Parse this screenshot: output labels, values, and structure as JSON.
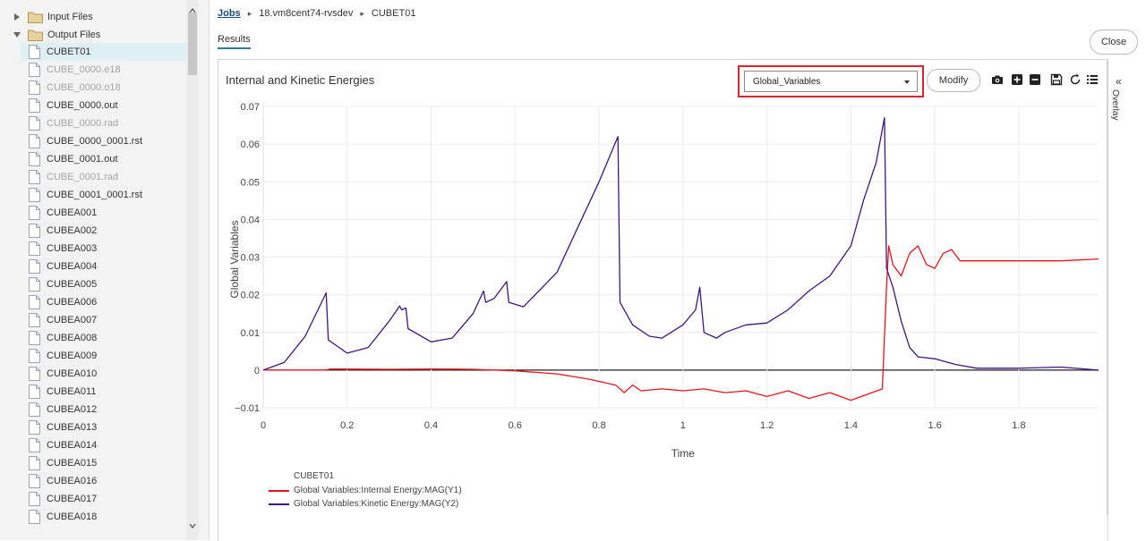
{
  "sidebar": {
    "folders": [
      {
        "label": "Input Files",
        "expanded": false
      },
      {
        "label": "Output Files",
        "expanded": true
      }
    ],
    "files": [
      {
        "label": "CUBET01",
        "dim": false,
        "selected": true
      },
      {
        "label": "CUBE_0000.e18",
        "dim": true
      },
      {
        "label": "CUBE_0000.o18",
        "dim": true
      },
      {
        "label": "CUBE_0000.out",
        "dim": false
      },
      {
        "label": "CUBE_0000.rad",
        "dim": true
      },
      {
        "label": "CUBE_0000_0001.rst",
        "dim": false
      },
      {
        "label": "CUBE_0001.out",
        "dim": false
      },
      {
        "label": "CUBE_0001.rad",
        "dim": true
      },
      {
        "label": "CUBE_0001_0001.rst",
        "dim": false
      },
      {
        "label": "CUBEA001",
        "dim": false
      },
      {
        "label": "CUBEA002",
        "dim": false
      },
      {
        "label": "CUBEA003",
        "dim": false
      },
      {
        "label": "CUBEA004",
        "dim": false
      },
      {
        "label": "CUBEA005",
        "dim": false
      },
      {
        "label": "CUBEA006",
        "dim": false
      },
      {
        "label": "CUBEA007",
        "dim": false
      },
      {
        "label": "CUBEA008",
        "dim": false
      },
      {
        "label": "CUBEA009",
        "dim": false
      },
      {
        "label": "CUBEA010",
        "dim": false
      },
      {
        "label": "CUBEA011",
        "dim": false
      },
      {
        "label": "CUBEA012",
        "dim": false
      },
      {
        "label": "CUBEA013",
        "dim": false
      },
      {
        "label": "CUBEA014",
        "dim": false
      },
      {
        "label": "CUBEA015",
        "dim": false
      },
      {
        "label": "CUBEA016",
        "dim": false
      },
      {
        "label": "CUBEA017",
        "dim": false
      },
      {
        "label": "CUBEA018",
        "dim": false
      }
    ]
  },
  "breadcrumb": {
    "root": "Jobs",
    "job": "18.vm8cent74-rvsdev",
    "file": "CUBET01"
  },
  "tabs": {
    "results": "Results"
  },
  "close_label": "Close",
  "chart_header": {
    "title": "Internal and Kinetic Energies",
    "variable_select": "Global_Variables",
    "modify_label": "Modify"
  },
  "toolbar_icons": [
    "camera-icon",
    "zoom-in-icon",
    "zoom-out-icon",
    "save-icon",
    "reset-icon",
    "list-icon"
  ],
  "overlay": {
    "label": "Overlay",
    "chevron": "«"
  },
  "colors": {
    "internal": "#e8141c",
    "kinetic": "#3d1680",
    "accent": "#2d7f8f",
    "highlight": "#d9262b"
  },
  "chart_data": {
    "type": "line",
    "xlabel": "Time",
    "ylabel": "Global Variables",
    "xlim": [
      0,
      1.99
    ],
    "ylim": [
      -0.012,
      0.072
    ],
    "xticks": [
      0,
      0.2,
      0.4,
      0.6,
      0.8,
      1,
      1.2,
      1.4,
      1.6,
      1.8
    ],
    "xtick_labels": [
      "0",
      "0.2",
      "0.4",
      "0.6",
      "0.8",
      "1",
      "1.2",
      "1.4",
      "1.6",
      "1.8"
    ],
    "yticks": [
      -0.01,
      0,
      0.01,
      0.02,
      0.03,
      0.04,
      0.05,
      0.06,
      0.07
    ],
    "ytick_labels": [
      "−0.01",
      "0",
      "0.01",
      "0.02",
      "0.03",
      "0.04",
      "0.05",
      "0.06",
      "0.07"
    ],
    "legend_title": "CUBET01",
    "series": [
      {
        "name": "Global Variables:Internal Energy:MAG(Y1)",
        "points": [
          [
            0,
            0
          ],
          [
            0.15,
            0
          ],
          [
            0.16,
            0.0003
          ],
          [
            0.3,
            0.0002
          ],
          [
            0.4,
            0.0003
          ],
          [
            0.5,
            0.0002
          ],
          [
            0.6,
            -0.0002
          ],
          [
            0.7,
            -0.001
          ],
          [
            0.78,
            -0.0025
          ],
          [
            0.84,
            -0.004
          ],
          [
            0.86,
            -0.006
          ],
          [
            0.88,
            -0.004
          ],
          [
            0.9,
            -0.0055
          ],
          [
            0.95,
            -0.005
          ],
          [
            1.0,
            -0.0055
          ],
          [
            1.05,
            -0.005
          ],
          [
            1.1,
            -0.006
          ],
          [
            1.15,
            -0.0055
          ],
          [
            1.2,
            -0.007
          ],
          [
            1.25,
            -0.0055
          ],
          [
            1.3,
            -0.0075
          ],
          [
            1.35,
            -0.006
          ],
          [
            1.4,
            -0.008
          ],
          [
            1.45,
            -0.006
          ],
          [
            1.475,
            -0.005
          ],
          [
            1.485,
            0.022
          ],
          [
            1.49,
            0.033
          ],
          [
            1.5,
            0.028
          ],
          [
            1.52,
            0.025
          ],
          [
            1.54,
            0.031
          ],
          [
            1.56,
            0.033
          ],
          [
            1.58,
            0.028
          ],
          [
            1.6,
            0.027
          ],
          [
            1.62,
            0.031
          ],
          [
            1.64,
            0.032
          ],
          [
            1.66,
            0.029
          ],
          [
            1.7,
            0.029
          ],
          [
            1.8,
            0.029
          ],
          [
            1.9,
            0.029
          ],
          [
            1.99,
            0.0295
          ]
        ]
      },
      {
        "name": "Global Variables:Kinetic Energy:MAG(Y2)",
        "points": [
          [
            0,
            0
          ],
          [
            0.05,
            0.002
          ],
          [
            0.1,
            0.009
          ],
          [
            0.15,
            0.0205
          ],
          [
            0.155,
            0.008
          ],
          [
            0.2,
            0.0045
          ],
          [
            0.25,
            0.006
          ],
          [
            0.3,
            0.013
          ],
          [
            0.325,
            0.017
          ],
          [
            0.33,
            0.016
          ],
          [
            0.34,
            0.0165
          ],
          [
            0.345,
            0.011
          ],
          [
            0.4,
            0.0075
          ],
          [
            0.45,
            0.0085
          ],
          [
            0.5,
            0.015
          ],
          [
            0.525,
            0.021
          ],
          [
            0.53,
            0.018
          ],
          [
            0.55,
            0.019
          ],
          [
            0.58,
            0.0235
          ],
          [
            0.585,
            0.018
          ],
          [
            0.62,
            0.0168
          ],
          [
            0.7,
            0.026
          ],
          [
            0.75,
            0.038
          ],
          [
            0.8,
            0.05
          ],
          [
            0.845,
            0.062
          ],
          [
            0.85,
            0.018
          ],
          [
            0.88,
            0.012
          ],
          [
            0.92,
            0.009
          ],
          [
            0.95,
            0.0085
          ],
          [
            1.0,
            0.012
          ],
          [
            1.03,
            0.016
          ],
          [
            1.04,
            0.022
          ],
          [
            1.05,
            0.01
          ],
          [
            1.08,
            0.0085
          ],
          [
            1.1,
            0.01
          ],
          [
            1.15,
            0.012
          ],
          [
            1.2,
            0.0125
          ],
          [
            1.25,
            0.016
          ],
          [
            1.3,
            0.021
          ],
          [
            1.35,
            0.025
          ],
          [
            1.4,
            0.033
          ],
          [
            1.43,
            0.045
          ],
          [
            1.46,
            0.055
          ],
          [
            1.48,
            0.067
          ],
          [
            1.485,
            0.027
          ],
          [
            1.5,
            0.022
          ],
          [
            1.52,
            0.013
          ],
          [
            1.54,
            0.006
          ],
          [
            1.56,
            0.0035
          ],
          [
            1.6,
            0.003
          ],
          [
            1.65,
            0.0015
          ],
          [
            1.7,
            0.0005
          ],
          [
            1.8,
            0.0005
          ],
          [
            1.9,
            0.0008
          ],
          [
            1.99,
            0
          ]
        ]
      }
    ]
  }
}
